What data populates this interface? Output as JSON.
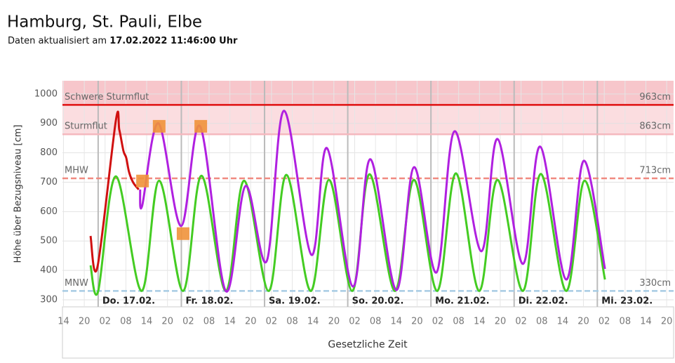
{
  "header": {
    "title": "Hamburg, St. Pauli, Elbe",
    "subtitle": "Daten aktualisiert am",
    "updated": "17.02.2022 11:46:00 Uhr"
  },
  "chart_data": {
    "type": "line",
    "y_label": "Höhe über Bezugsniveau [cm]",
    "x_label": "Gesetzliche Zeit",
    "ylim": [
      276,
      1045
    ],
    "yticks": [
      300,
      400,
      500,
      600,
      700,
      800,
      900,
      1000
    ],
    "xlim": [
      -10.3,
      166
    ],
    "xticks": [
      {
        "value": -10,
        "label": "14"
      },
      {
        "value": -4,
        "label": "20"
      },
      {
        "value": 2,
        "label": "02"
      },
      {
        "value": 8,
        "label": "08"
      },
      {
        "value": 14,
        "label": "14"
      },
      {
        "value": 20,
        "label": "20"
      },
      {
        "value": 26,
        "label": "02"
      },
      {
        "value": 32,
        "label": "08"
      },
      {
        "value": 38,
        "label": "14"
      },
      {
        "value": 44,
        "label": "20"
      },
      {
        "value": 50,
        "label": "02"
      },
      {
        "value": 56,
        "label": "08"
      },
      {
        "value": 62,
        "label": "14"
      },
      {
        "value": 68,
        "label": "20"
      },
      {
        "value": 74,
        "label": "02"
      },
      {
        "value": 80,
        "label": "08"
      },
      {
        "value": 86,
        "label": "14"
      },
      {
        "value": 92,
        "label": "20"
      },
      {
        "value": 98,
        "label": "02"
      },
      {
        "value": 104,
        "label": "08"
      },
      {
        "value": 110,
        "label": "14"
      },
      {
        "value": 116,
        "label": "20"
      },
      {
        "value": 122,
        "label": "02"
      },
      {
        "value": 128,
        "label": "08"
      },
      {
        "value": 134,
        "label": "14"
      },
      {
        "value": 140,
        "label": "20"
      },
      {
        "value": 146,
        "label": "02"
      },
      {
        "value": 152,
        "label": "08"
      },
      {
        "value": 158,
        "label": "14"
      },
      {
        "value": 164,
        "label": "20"
      }
    ],
    "grid": true,
    "days": [
      {
        "x": 0,
        "label": "Do. 17.02."
      },
      {
        "x": 24,
        "label": "Fr. 18.02."
      },
      {
        "x": 48,
        "label": "Sa. 19.02."
      },
      {
        "x": 72,
        "label": "So. 20.02."
      },
      {
        "x": 96,
        "label": "Mo. 21.02."
      },
      {
        "x": 120,
        "label": "Di. 22.02."
      },
      {
        "x": 144,
        "label": "Mi. 23.02."
      }
    ],
    "thresholds": [
      {
        "name": "Schwere Sturmflut",
        "value": 963,
        "value_label": "963cm",
        "color": "#e01010",
        "dashed": false
      },
      {
        "name": "Sturmflut",
        "value": 863,
        "value_label": "863cm",
        "color": "#f4b8be",
        "dashed": false
      },
      {
        "name": "MHW",
        "value": 713,
        "value_label": "713cm",
        "color": "#f08a80",
        "dashed": true
      },
      {
        "name": "MNW",
        "value": 330,
        "value_label": "330cm",
        "color": "#a8cce4",
        "dashed": true
      }
    ],
    "series": [
      {
        "color": "#44cc22",
        "x": [
          -2.2,
          0,
          5.1,
          12.5,
          17.6,
          24.5,
          29.8,
          36.8,
          42.1,
          49.2,
          54.3,
          61.3,
          66.6,
          73.3,
          78.3,
          85.6,
          91.1,
          97.8,
          103.2,
          109.9,
          115.2,
          122.5,
          127.7,
          135,
          140.3,
          146.2
        ],
        "values": [
          417,
          329,
          720,
          330,
          705,
          330,
          722,
          330,
          705,
          330,
          725,
          330,
          708,
          330,
          727,
          330,
          708,
          330,
          730,
          330,
          708,
          330,
          728,
          330,
          705,
          369
        ]
      },
      {
        "color": "#b020e0",
        "x": [
          12.1,
          12.7,
          17.4,
          23.9,
          29.4,
          36.8,
          42.5,
          48.6,
          53.6,
          61.5,
          66,
          73.5,
          78.5,
          86,
          91.1,
          97.6,
          102.8,
          110.5,
          115.2,
          122.5,
          127.5,
          135,
          140.1,
          146.2
        ],
        "values": [
          675,
          620,
          900,
          551,
          890,
          330,
          687,
          431,
          943,
          453,
          816,
          345,
          778,
          333,
          751,
          393,
          873,
          465,
          847,
          422,
          821,
          369,
          773,
          405
        ]
      },
      {
        "color": "#d01010",
        "x": [
          -2.2,
          -0.2,
          5.1,
          6.1,
          7.3,
          8.1,
          8.9,
          10.1,
          11.7
        ],
        "values": [
          517,
          412,
          909,
          878,
          806,
          783,
          735,
          699,
          675
        ]
      }
    ],
    "markers": {
      "color": "#f0923a",
      "x": [
        12.8,
        17.6,
        24.5,
        29.6
      ],
      "values": [
        704,
        890,
        525,
        890
      ]
    }
  }
}
